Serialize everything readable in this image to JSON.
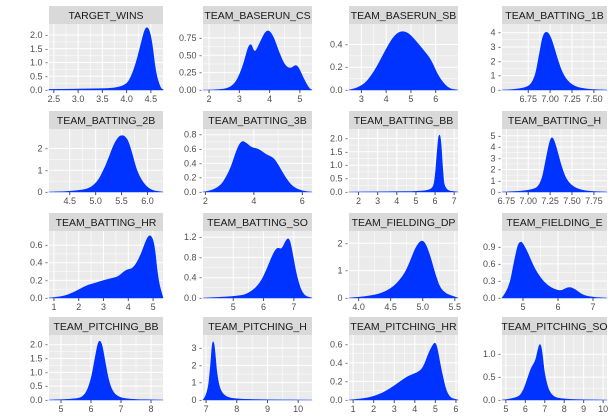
{
  "chart_data": [
    {
      "type": "area",
      "title": "TARGET_WINS",
      "xlim": [
        2.4,
        4.75
      ],
      "ylim": [
        0,
        2.4
      ],
      "xticks": [
        2.5,
        3.0,
        3.5,
        4.0,
        4.5
      ],
      "xtick_labels": [
        "2.5",
        "3.0",
        "3.5",
        "4.0",
        "4.5"
      ],
      "yticks": [
        0,
        0.5,
        1.0,
        1.5,
        2.0
      ],
      "ytick_labels": [
        "0.0 -",
        "0.5 -",
        "1.0 -",
        "1.5 -",
        "2.0 -"
      ],
      "x": [
        2.4,
        3.5,
        3.8,
        4.0,
        4.1,
        4.2,
        4.3,
        4.38,
        4.45,
        4.52,
        4.6,
        4.7,
        4.75
      ],
      "y": [
        0.02,
        0.04,
        0.08,
        0.2,
        0.5,
        1.0,
        1.7,
        2.25,
        2.28,
        1.8,
        0.6,
        0.05,
        0.02
      ]
    },
    {
      "type": "area",
      "title": "TEAM_BASERUN_CS",
      "xlim": [
        1.8,
        5.4
      ],
      "ylim": [
        0,
        0.95
      ],
      "xticks": [
        2,
        3,
        4,
        5
      ],
      "xtick_labels": [
        "2",
        "3",
        "4",
        "5"
      ],
      "yticks": [
        0,
        0.25,
        0.5,
        0.75
      ],
      "ytick_labels": [
        "0.00 -",
        "0.25 -",
        "0.50 -",
        "0.75 -"
      ],
      "x": [
        1.8,
        2.3,
        2.8,
        3.1,
        3.35,
        3.5,
        3.65,
        3.9,
        4.1,
        4.3,
        4.5,
        4.7,
        4.9,
        5.1,
        5.3,
        5.4
      ],
      "y": [
        0.0,
        0.0,
        0.04,
        0.3,
        0.72,
        0.52,
        0.65,
        0.88,
        0.8,
        0.55,
        0.35,
        0.3,
        0.38,
        0.18,
        0.02,
        0.0
      ]
    },
    {
      "type": "area",
      "title": "TEAM_BASERUN_SB",
      "xlim": [
        2.5,
        6.9
      ],
      "ylim": [
        0,
        0.58
      ],
      "xticks": [
        3,
        4,
        5,
        6
      ],
      "xtick_labels": [
        "3",
        "4",
        "5",
        "6"
      ],
      "yticks": [
        0,
        0.2,
        0.4
      ],
      "ytick_labels": [
        "0.0 -",
        "0.2 -",
        "0.4 -"
      ],
      "x": [
        2.5,
        3.0,
        3.5,
        4.0,
        4.3,
        4.6,
        4.9,
        5.2,
        5.5,
        5.8,
        6.1,
        6.5,
        6.9
      ],
      "y": [
        0.0,
        0.02,
        0.15,
        0.36,
        0.47,
        0.52,
        0.5,
        0.43,
        0.35,
        0.27,
        0.12,
        0.01,
        0.0
      ]
    },
    {
      "type": "area",
      "title": "TEAM_BATTING_1B",
      "xlim": [
        6.45,
        7.65
      ],
      "ylim": [
        0,
        4.6
      ],
      "xticks": [
        6.75,
        7.0,
        7.25,
        7.5
      ],
      "xtick_labels": [
        "6.75",
        "7.00",
        "7.25",
        "7.50"
      ],
      "yticks": [
        0,
        1,
        2,
        3,
        4
      ],
      "ytick_labels": [
        "0 -",
        "1 -",
        "2 -",
        "3 -",
        "4 -"
      ],
      "x": [
        6.45,
        6.7,
        6.82,
        6.88,
        6.92,
        6.97,
        7.02,
        7.08,
        7.15,
        7.25,
        7.4,
        7.65
      ],
      "y": [
        0.0,
        0.03,
        0.6,
        2.6,
        3.9,
        4.1,
        3.5,
        2.2,
        1.0,
        0.3,
        0.05,
        0.0
      ]
    },
    {
      "type": "area",
      "title": "TEAM_BATTING_2B",
      "xlim": [
        4.1,
        6.3
      ],
      "ylim": [
        0,
        2.9
      ],
      "xticks": [
        4.5,
        5.0,
        5.5,
        6.0
      ],
      "xtick_labels": [
        "4.5",
        "5.0",
        "5.5",
        "6.0"
      ],
      "yticks": [
        0,
        1,
        2
      ],
      "ytick_labels": [
        "0 -",
        "1 -",
        "2 -"
      ],
      "x": [
        4.1,
        4.7,
        5.0,
        5.2,
        5.35,
        5.45,
        5.5,
        5.55,
        5.62,
        5.7,
        5.8,
        5.95,
        6.1,
        6.3
      ],
      "y": [
        0.0,
        0.02,
        0.3,
        1.2,
        2.2,
        2.55,
        2.6,
        2.58,
        2.4,
        1.8,
        0.9,
        0.3,
        0.05,
        0.0
      ]
    },
    {
      "type": "area",
      "title": "TEAM_BATTING_3B",
      "xlim": [
        1.9,
        6.4
      ],
      "ylim": [
        0,
        0.88
      ],
      "xticks": [
        2,
        4,
        6
      ],
      "xtick_labels": [
        "2",
        "4",
        "6"
      ],
      "yticks": [
        0,
        0.2,
        0.4,
        0.6,
        0.8
      ],
      "ytick_labels": [
        "0.0 -",
        "0.2 -",
        "0.4 -",
        "0.6 -",
        "0.8 -"
      ],
      "x": [
        1.9,
        2.5,
        3.0,
        3.3,
        3.5,
        3.7,
        3.9,
        4.2,
        4.5,
        4.8,
        5.0,
        5.3,
        5.6,
        6.0,
        6.4
      ],
      "y": [
        0.0,
        0.02,
        0.28,
        0.6,
        0.72,
        0.68,
        0.62,
        0.6,
        0.52,
        0.48,
        0.38,
        0.2,
        0.07,
        0.01,
        0.0
      ]
    },
    {
      "type": "area",
      "title": "TEAM_BATTING_BB",
      "xlim": [
        1.5,
        7.2
      ],
      "ylim": [
        0,
        2.35
      ],
      "xticks": [
        2,
        3,
        4,
        5,
        6,
        7
      ],
      "xtick_labels": [
        "2",
        "3",
        "4",
        "5",
        "6",
        "7"
      ],
      "yticks": [
        0,
        0.5,
        1.0,
        1.5,
        2.0
      ],
      "ytick_labels": [
        "0.0 -",
        "0.5 -",
        "1.0 -",
        "1.5 -",
        "2.0 -"
      ],
      "x": [
        1.5,
        4.0,
        5.0,
        5.6,
        5.9,
        6.0,
        6.1,
        6.2,
        6.3,
        6.4,
        6.5,
        7.2
      ],
      "y": [
        0.0,
        0.01,
        0.02,
        0.05,
        0.15,
        0.5,
        1.4,
        2.2,
        2.0,
        0.8,
        0.05,
        0.0
      ]
    },
    {
      "type": "area",
      "title": "TEAM_BATTING_H",
      "xlim": [
        6.7,
        7.9
      ],
      "ylim": [
        0,
        5.6
      ],
      "xticks": [
        6.75,
        7.0,
        7.25,
        7.5,
        7.75
      ],
      "xtick_labels": [
        "6.75",
        "7.00",
        "7.25",
        "7.50",
        "7.75"
      ],
      "yticks": [
        0,
        1,
        2,
        3,
        4,
        5
      ],
      "ytick_labels": [
        "0 -",
        "1 -",
        "2 -",
        "3 -",
        "4 -",
        "5 -"
      ],
      "x": [
        6.7,
        7.05,
        7.15,
        7.2,
        7.25,
        7.28,
        7.32,
        7.38,
        7.45,
        7.6,
        7.9
      ],
      "y": [
        0.0,
        0.05,
        0.8,
        2.8,
        4.7,
        4.9,
        4.0,
        2.2,
        0.8,
        0.08,
        0.0
      ]
    },
    {
      "type": "area",
      "title": "TEAM_BATTING_HR",
      "xlim": [
        0.8,
        5.4
      ],
      "ylim": [
        0,
        0.76
      ],
      "xticks": [
        1,
        2,
        3,
        4,
        5
      ],
      "xtick_labels": [
        "1",
        "2",
        "3",
        "4",
        "5"
      ],
      "yticks": [
        0,
        0.2,
        0.4,
        0.6
      ],
      "ytick_labels": [
        "0.0 -",
        "0.2 -",
        "0.4 -",
        "0.6 -"
      ],
      "x": [
        0.8,
        1.3,
        1.8,
        2.3,
        2.7,
        3.0,
        3.3,
        3.6,
        3.9,
        4.2,
        4.5,
        4.75,
        4.9,
        5.05,
        5.2,
        5.4
      ],
      "y": [
        0.0,
        0.01,
        0.06,
        0.14,
        0.17,
        0.2,
        0.22,
        0.24,
        0.32,
        0.33,
        0.48,
        0.68,
        0.72,
        0.62,
        0.2,
        0.0
      ]
    },
    {
      "type": "area",
      "title": "TEAM_BATTING_SO",
      "xlim": [
        4.0,
        7.6
      ],
      "ylim": [
        0,
        1.32
      ],
      "xticks": [
        5,
        6,
        7
      ],
      "xtick_labels": [
        "5",
        "6",
        "7"
      ],
      "yticks": [
        0,
        0.4,
        0.8,
        1.2
      ],
      "ytick_labels": [
        "0.0 -",
        "0.4 -",
        "0.8 -",
        "1.2 -"
      ],
      "x": [
        4.0,
        5.2,
        5.6,
        5.9,
        6.1,
        6.3,
        6.45,
        6.6,
        6.75,
        6.85,
        6.95,
        7.1,
        7.3,
        7.6
      ],
      "y": [
        0.0,
        0.02,
        0.12,
        0.3,
        0.55,
        0.85,
        1.0,
        0.95,
        1.15,
        1.18,
        0.9,
        0.4,
        0.05,
        0.0
      ]
    },
    {
      "type": "area",
      "title": "TEAM_FIELDING_DP",
      "xlim": [
        3.85,
        5.55
      ],
      "ylim": [
        0,
        2.45
      ],
      "xticks": [
        4.0,
        4.5,
        5.0,
        5.5
      ],
      "xtick_labels": [
        "4.0",
        "4.5",
        "5.0",
        "5.5"
      ],
      "yticks": [
        0,
        1,
        2
      ],
      "ytick_labels": [
        "0 -",
        "1 -",
        "2 -"
      ],
      "x": [
        3.85,
        4.2,
        4.5,
        4.7,
        4.8,
        4.88,
        4.95,
        5.0,
        5.05,
        5.12,
        5.2,
        5.3,
        5.55
      ],
      "y": [
        0.0,
        0.05,
        0.3,
        0.8,
        1.3,
        1.8,
        2.05,
        2.1,
        1.95,
        1.5,
        0.8,
        0.2,
        0.0
      ]
    },
    {
      "type": "area",
      "title": "TEAM_FIELDING_E",
      "xlim": [
        4.4,
        7.4
      ],
      "ylim": [
        0,
        1.18
      ],
      "xticks": [
        5,
        6,
        7
      ],
      "xtick_labels": [
        "5",
        "6",
        "7"
      ],
      "yticks": [
        0,
        0.3,
        0.6,
        0.9
      ],
      "ytick_labels": [
        "0.0 -",
        "0.3 -",
        "0.6 -",
        "0.9 -"
      ],
      "x": [
        4.4,
        4.6,
        4.75,
        4.9,
        5.1,
        5.3,
        5.5,
        5.7,
        5.9,
        6.1,
        6.3,
        6.5,
        6.7,
        7.0,
        7.4
      ],
      "y": [
        0.0,
        0.15,
        0.65,
        1.05,
        0.85,
        0.55,
        0.35,
        0.22,
        0.15,
        0.12,
        0.2,
        0.15,
        0.05,
        0.01,
        0.0
      ]
    },
    {
      "type": "area",
      "title": "TEAM_PITCHING_BB",
      "xlim": [
        4.6,
        8.4
      ],
      "ylim": [
        0,
        2.35
      ],
      "xticks": [
        5,
        6,
        7,
        8
      ],
      "xtick_labels": [
        "5",
        "6",
        "7",
        "8"
      ],
      "yticks": [
        0,
        0.5,
        1.0,
        1.5,
        2.0
      ],
      "ytick_labels": [
        "0.0 -",
        "0.5 -",
        "1.0 -",
        "1.5 -",
        "2.0 -"
      ],
      "x": [
        4.6,
        5.5,
        5.8,
        6.0,
        6.15,
        6.25,
        6.35,
        6.45,
        6.6,
        6.8,
        7.2,
        8.4
      ],
      "y": [
        0.0,
        0.02,
        0.15,
        0.7,
        1.6,
        2.15,
        2.1,
        1.5,
        0.6,
        0.15,
        0.02,
        0.0
      ]
    },
    {
      "type": "area",
      "title": "TEAM_PITCHING_H",
      "xlim": [
        6.9,
        10.45
      ],
      "ylim": [
        0,
        3.75
      ],
      "xticks": [
        7,
        8,
        9,
        10
      ],
      "xtick_labels": [
        "7",
        "8",
        "9",
        "10"
      ],
      "yticks": [
        0,
        1,
        2,
        3
      ],
      "ytick_labels": [
        "0 -",
        "1 -",
        "2 -",
        "3 -"
      ],
      "x": [
        6.9,
        7.05,
        7.15,
        7.2,
        7.25,
        7.3,
        7.35,
        7.45,
        7.6,
        7.8,
        8.2,
        9.0,
        10.45
      ],
      "y": [
        0.0,
        0.3,
        2.0,
        3.3,
        3.4,
        2.6,
        1.5,
        0.6,
        0.25,
        0.1,
        0.04,
        0.01,
        0.0
      ]
    },
    {
      "type": "area",
      "title": "TEAM_PITCHING_HR",
      "xlim": [
        0.8,
        6.1
      ],
      "ylim": [
        0,
        0.7
      ],
      "xticks": [
        1,
        2,
        3,
        4,
        5,
        6
      ],
      "xtick_labels": [
        "1",
        "2",
        "3",
        "4",
        "5",
        "6"
      ],
      "yticks": [
        0,
        0.2,
        0.4,
        0.6
      ],
      "ytick_labels": [
        "0.0 -",
        "0.2 -",
        "0.4 -",
        "0.6 -"
      ],
      "x": [
        0.8,
        1.5,
        2.2,
        2.8,
        3.3,
        3.7,
        4.1,
        4.4,
        4.7,
        4.9,
        5.0,
        5.1,
        5.3,
        5.6,
        6.1
      ],
      "y": [
        0.0,
        0.01,
        0.05,
        0.12,
        0.2,
        0.26,
        0.29,
        0.34,
        0.52,
        0.6,
        0.62,
        0.55,
        0.3,
        0.03,
        0.0
      ]
    },
    {
      "type": "area",
      "title": "TEAM_PITCHING_SO",
      "xlim": [
        4.8,
        10.2
      ],
      "ylim": [
        0,
        1.42
      ],
      "xticks": [
        5,
        6,
        7,
        8,
        9,
        10
      ],
      "xtick_labels": [
        "5",
        "6",
        "7",
        "8",
        "9",
        "10"
      ],
      "yticks": [
        0,
        0.5,
        1.0
      ],
      "ytick_labels": [
        "0.0 -",
        "0.5 -",
        "1.0 -"
      ],
      "x": [
        4.8,
        5.6,
        5.9,
        6.1,
        6.3,
        6.45,
        6.55,
        6.65,
        6.75,
        6.85,
        7.0,
        7.3,
        8.0,
        10.2
      ],
      "y": [
        0.0,
        0.03,
        0.2,
        0.45,
        0.7,
        0.8,
        0.9,
        1.1,
        1.25,
        1.1,
        0.5,
        0.08,
        0.01,
        0.0
      ]
    }
  ],
  "colors": {
    "fill": "#0033ff",
    "panel_bg": "#ebebeb",
    "strip_bg": "#d9d9d9",
    "grid": "#ffffff",
    "tick": "#4d4d4d",
    "text": "#1a1a1a"
  }
}
